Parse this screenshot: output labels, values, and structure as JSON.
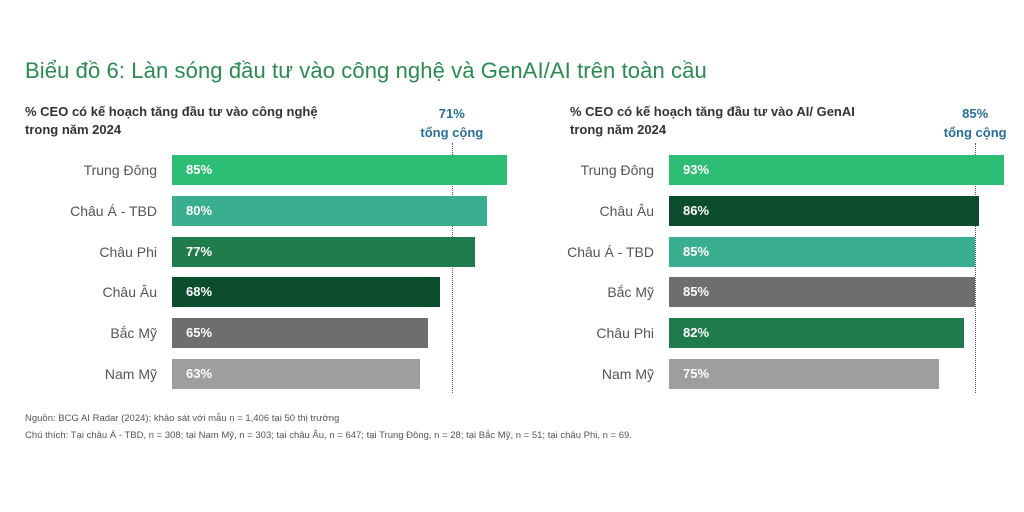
{
  "title": "Biểu đồ 6: Làn sóng đầu tư vào công nghệ và GenAI/AI trên toàn cầu",
  "colors": {
    "light_green": "#2ebd74",
    "teal": "#3aaf8f",
    "medium_green": "#1f7a4c",
    "dark_green": "#0b4d2c",
    "gray": "#6e6e70",
    "light_gray": "#9e9e9e"
  },
  "chart_data": [
    {
      "type": "bar",
      "orientation": "horizontal",
      "subtitle_line1": "% CEO có kế hoạch tăng đầu tư vào công nghệ",
      "subtitle_line2": "trong năm 2024",
      "average_value_label": "71%",
      "average_text": "tổng cộng",
      "average": 71,
      "categories": [
        "Trung Đông",
        "Châu Á - TBD",
        "Châu Phi",
        "Châu Âu",
        "Bắc Mỹ",
        "Nam Mỹ"
      ],
      "values": [
        85,
        80,
        77,
        68,
        65,
        63
      ],
      "value_labels": [
        "85%",
        "80%",
        "77%",
        "68%",
        "65%",
        "63%"
      ],
      "bar_colors": [
        "#2ebd74",
        "#3aaf8f",
        "#1f7a4c",
        "#0b4d2c",
        "#6e6e70",
        "#9e9e9e"
      ],
      "xlim": [
        0,
        85
      ]
    },
    {
      "type": "bar",
      "orientation": "horizontal",
      "subtitle_line1": "% CEO có kế hoạch tăng đầu tư vào AI/ GenAI",
      "subtitle_line2": "trong năm 2024",
      "average_value_label": "85%",
      "average_text": "tổng cộng",
      "average": 85,
      "categories": [
        "Trung Đông",
        "Châu Âu",
        "Châu Á - TBD",
        "Bắc Mỹ",
        "Châu Phi",
        "Nam Mỹ"
      ],
      "values": [
        93,
        86,
        85,
        85,
        82,
        75
      ],
      "value_labels": [
        "93%",
        "86%",
        "85%",
        "85%",
        "82%",
        "75%"
      ],
      "bar_colors": [
        "#2ebd74",
        "#0b4d2c",
        "#3aaf8f",
        "#6e6e70",
        "#1f7a4c",
        "#9e9e9e"
      ],
      "xlim": [
        0,
        93
      ]
    }
  ],
  "footnotes": {
    "source": "Nguồn: BCG AI Radar (2024); khảo sát với mẫu n = 1,406 tại 50 thị trường",
    "note": "Chú thích: Tại châu Á - TBD, n = 308; tại Nam Mỹ, n = 303; tại châu Âu, n = 647; tại Trung Đông, n = 28; tại Bắc Mỹ, n = 51; tại châu Phi, n = 69."
  }
}
